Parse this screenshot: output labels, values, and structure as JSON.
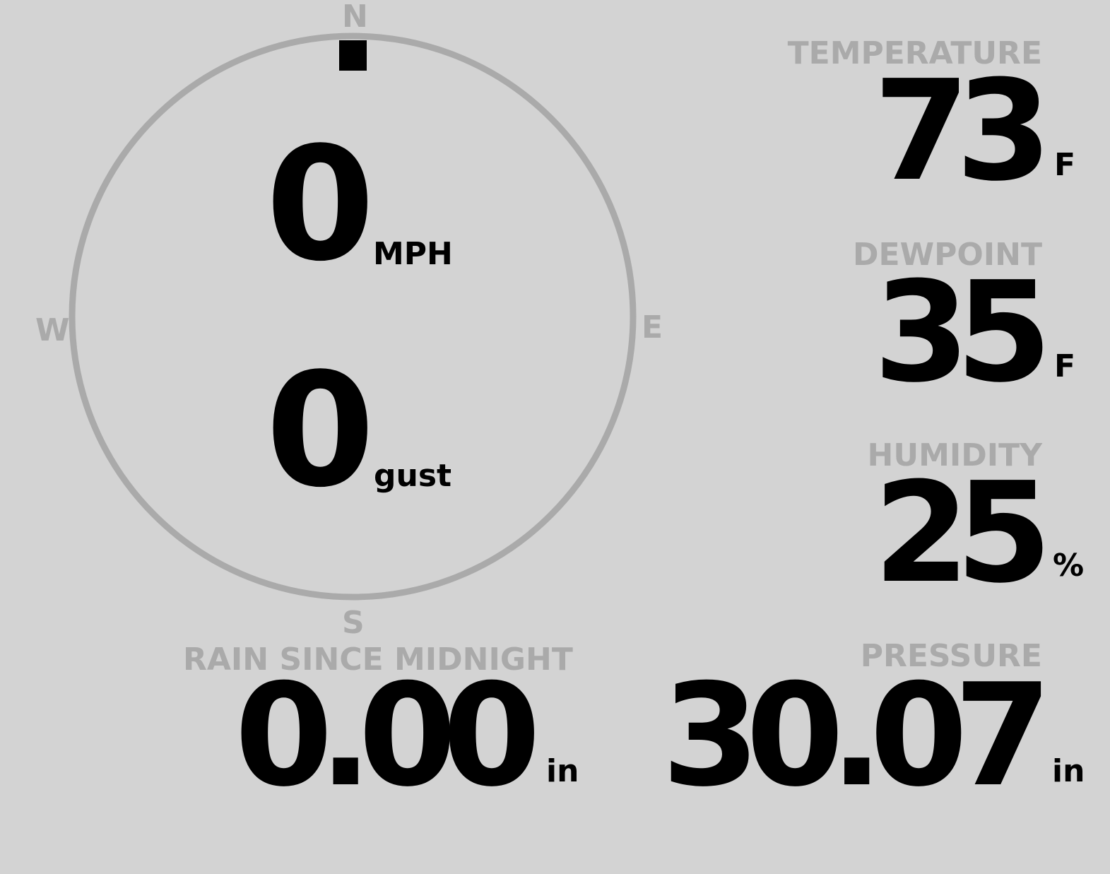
{
  "colors": {
    "background": "#d3d3d3",
    "label": "#aaaaaa",
    "value": "#000000",
    "dial": "#aaaaaa"
  },
  "wind": {
    "direction_degrees": 0,
    "cardinals": {
      "n": "N",
      "e": "E",
      "s": "S",
      "w": "W"
    },
    "speed": "0",
    "speed_unit": "MPH",
    "gust": "0",
    "gust_unit": "gust"
  },
  "temperature": {
    "label": "TEMPERATURE",
    "value": "73",
    "unit": "F"
  },
  "dewpoint": {
    "label": "DEWPOINT",
    "value": "35",
    "unit": "F"
  },
  "humidity": {
    "label": "HUMIDITY",
    "value": "25",
    "unit": "%"
  },
  "rain": {
    "label": "RAIN SINCE MIDNIGHT",
    "value": "0.00",
    "unit": "in"
  },
  "pressure": {
    "label": "PRESSURE",
    "value": "30.07",
    "unit": "in"
  }
}
